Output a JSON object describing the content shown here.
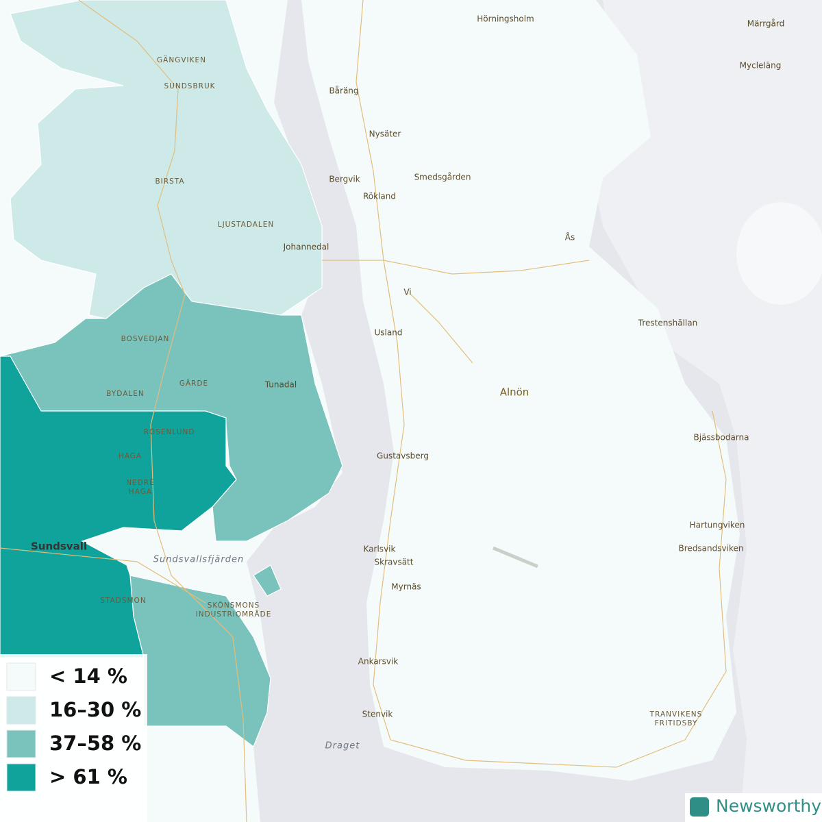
{
  "map": {
    "places": [
      "Hörningsholm",
      "Märrgård",
      "Mycleläng",
      "Båräng",
      "Nysäter",
      "Bergvik",
      "Smedsgården",
      "Rökland",
      "Ås",
      "Johannedal",
      "Vi",
      "Trestenshällan",
      "Usland",
      "Tunadal",
      "Alnön",
      "Gustavsberg",
      "Bjässbodarna",
      "Hartungviken",
      "Bredsandsviken",
      "Sundsvall",
      "Karlsvik",
      "Skravsätt",
      "Myrnäs",
      "Ankarsvik",
      "Stenvik"
    ],
    "districts": [
      {
        "lines": [
          "GÄNGVIKEN"
        ]
      },
      {
        "lines": [
          "SUNDSBRUK"
        ]
      },
      {
        "lines": [
          "BIRSTA"
        ]
      },
      {
        "lines": [
          "LJUSTADALEN"
        ]
      },
      {
        "lines": [
          "BOSVEDJAN"
        ]
      },
      {
        "lines": [
          "GÄRDE"
        ]
      },
      {
        "lines": [
          "BYDALEN"
        ]
      },
      {
        "lines": [
          "ROSENLUND"
        ]
      },
      {
        "lines": [
          "HAGA"
        ]
      },
      {
        "lines": [
          "NEDRE",
          "HAGA"
        ]
      },
      {
        "lines": [
          "STADSMON"
        ]
      },
      {
        "lines": [
          "SKÖNSMONS",
          "INDUSTRIOMRÅDE"
        ]
      },
      {
        "lines": [
          "TRANVIKENS",
          "FRITIDSBY"
        ]
      }
    ],
    "water": [
      "Sundsvallsfjärden",
      "Draget"
    ],
    "legend": [
      {
        "label": "< 14 %",
        "color": "#f5fbfb"
      },
      {
        "label": "16–30 %",
        "color": "#cde9e8"
      },
      {
        "label": "37–58 %",
        "color": "#7ac3bd"
      },
      {
        "label": "> 61 %",
        "color": "#0fa39b"
      }
    ],
    "brand": "Newsworthy"
  }
}
